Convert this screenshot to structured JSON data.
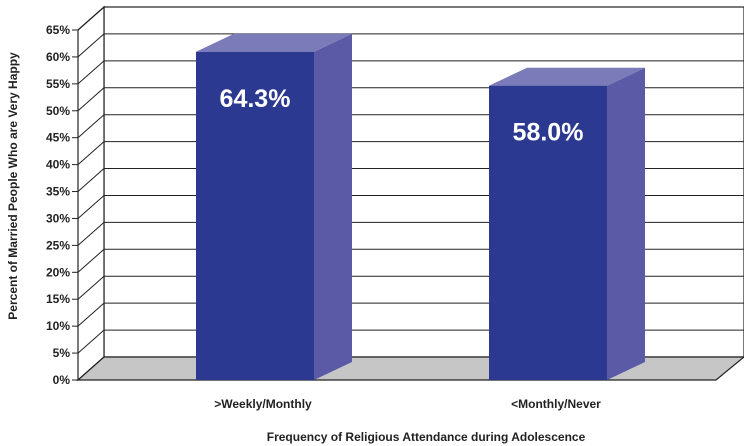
{
  "chart_data": {
    "type": "bar",
    "categories": [
      ">Weekly/Monthly",
      "<Monthly/Never"
    ],
    "values": [
      64.3,
      58.0
    ],
    "data_labels": [
      "64.3%",
      "58.0%"
    ],
    "title": "",
    "xlabel": "Frequency of Religious Attendance during Adolescence",
    "ylabel": "Percent of Married People Who are Very Happy",
    "ylim": [
      0,
      65
    ],
    "yticks": [
      "0%",
      "5%",
      "10%",
      "15%",
      "20%",
      "25%",
      "30%",
      "35%",
      "40%",
      "45%",
      "50%",
      "55%",
      "60%",
      "65%"
    ],
    "grid": true,
    "style": "3d",
    "colors": {
      "front": "#2b3990",
      "side": "#5a5aa6",
      "top": "#7b7bb9",
      "floor": "#c6c6c6"
    }
  }
}
